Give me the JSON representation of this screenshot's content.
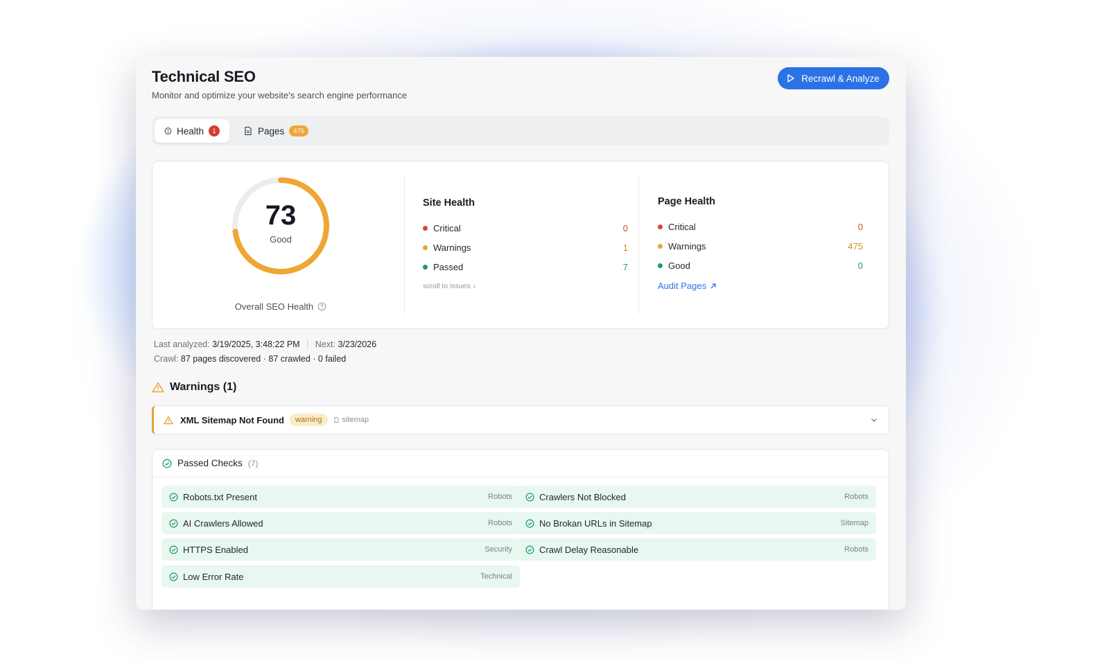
{
  "header": {
    "title": "Technical SEO",
    "subtitle": "Monitor and optimize your website's search engine performance",
    "recrawl_label": "Recrawl & Analyze"
  },
  "tabs": [
    {
      "label": "Health",
      "badge": "1",
      "icon": "alert-circle-icon",
      "active": true
    },
    {
      "label": "Pages",
      "badge": "475",
      "icon": "document-icon",
      "active": false
    }
  ],
  "score": {
    "value": "73",
    "label": "Good",
    "caption": "Overall SEO Health",
    "fraction": 0.73,
    "color": "#efa634"
  },
  "site_health": {
    "title": "Site Health",
    "rows": [
      {
        "label": "Critical",
        "value": "0",
        "color": "#d8452f"
      },
      {
        "label": "Warnings",
        "value": "1",
        "color": "#e8a33a"
      },
      {
        "label": "Passed",
        "value": "7",
        "color": "#1f9a6a"
      }
    ],
    "link": "scroll to issues"
  },
  "page_health": {
    "title": "Page Health",
    "rows": [
      {
        "label": "Critical",
        "value": "0",
        "color": "#d8452f"
      },
      {
        "label": "Warnings",
        "value": "475",
        "color": "#e8a33a"
      },
      {
        "label": "Good",
        "value": "0",
        "color": "#1f9a6a"
      }
    ],
    "link": "Audit Pages"
  },
  "meta": {
    "last_label": "Last analyzed:",
    "last_value": "3/19/2025, 3:48:22 PM",
    "next_label": "Next:",
    "next_value": "3/23/2026",
    "crawl_label": "Crawl:",
    "crawl_value": "87 pages discovered · 87 crawled · 0 failed"
  },
  "warnings": {
    "heading": "Warnings (1)",
    "items": [
      {
        "title": "XML Sitemap Not Found",
        "severity": "warning",
        "category": "sitemap"
      }
    ]
  },
  "passed": {
    "heading": "Passed Checks",
    "count": "(7)",
    "items": [
      {
        "label": "Robots.txt Present",
        "category": "Robots"
      },
      {
        "label": "Crawlers Not Blocked",
        "category": "Robots"
      },
      {
        "label": "AI Crawlers Allowed",
        "category": "Robots"
      },
      {
        "label": "No Brokan URLs in Sitemap",
        "category": "Sitemap"
      },
      {
        "label": "HTTPS Enabled",
        "category": "Security"
      },
      {
        "label": "Crawl Delay Reasonable",
        "category": "Robots"
      },
      {
        "label": "Low Error Rate",
        "category": "Technical"
      }
    ]
  }
}
